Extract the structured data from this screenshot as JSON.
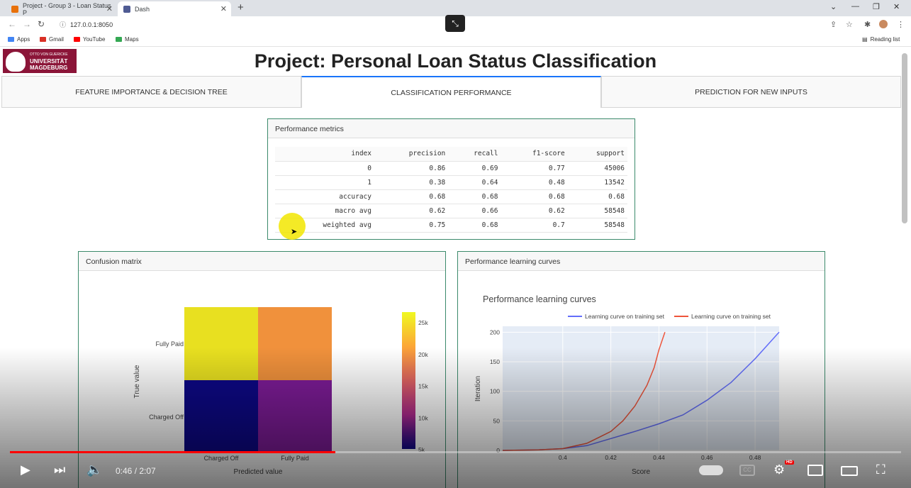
{
  "browser": {
    "tabs": [
      {
        "title": "Project - Group 3 - Loan Status P",
        "color": "#e8710a"
      },
      {
        "title": "Dash",
        "color": "#4f5b93"
      }
    ],
    "url": "127.0.0.1:8050",
    "bookmarks": [
      {
        "label": "Apps",
        "color": "#4285f4"
      },
      {
        "label": "Gmail",
        "color": "#d93025"
      },
      {
        "label": "YouTube",
        "color": "#ff0000"
      },
      {
        "label": "Maps",
        "color": "#34a853"
      }
    ],
    "reading_list": "Reading list"
  },
  "page": {
    "logo": {
      "line1": "OTTO VON GUERICKE",
      "line2": "UNIVERSITÄT",
      "line3": "MAGDEBURG"
    },
    "title": "Project: Personal Loan Status Classification",
    "tabs": [
      "FEATURE IMPORTANCE & DECISION TREE",
      "CLASSIFICATION PERFORMANCE",
      "PREDICTION FOR NEW INPUTS"
    ],
    "selected_tab": 1
  },
  "metrics": {
    "title": "Performance metrics",
    "columns": [
      "index",
      "precision",
      "recall",
      "f1-score",
      "support"
    ],
    "rows": [
      [
        "0",
        "0.86",
        "0.69",
        "0.77",
        "45006"
      ],
      [
        "1",
        "0.38",
        "0.64",
        "0.48",
        "13542"
      ],
      [
        "accuracy",
        "0.68",
        "0.68",
        "0.68",
        "0.68"
      ],
      [
        "macro avg",
        "0.62",
        "0.66",
        "0.62",
        "58548"
      ],
      [
        "weighted avg",
        "0.75",
        "0.68",
        "0.7",
        "58548"
      ]
    ]
  },
  "confusion": {
    "title": "Confusion matrix",
    "ylabel": "True value",
    "xlabel": "Predicted value",
    "y_categories": [
      "Fully Paid",
      "Charged Off"
    ],
    "x_categories": [
      "Charged Off",
      "Fully Paid"
    ],
    "cells": [
      {
        "row": "Fully Paid",
        "col": "Charged Off",
        "color": "#e8e020"
      },
      {
        "row": "Fully Paid",
        "col": "Fully Paid",
        "color": "#f0913c"
      },
      {
        "row": "Charged Off",
        "col": "Charged Off",
        "color": "#0d0887"
      },
      {
        "row": "Charged Off",
        "col": "Fully Paid",
        "color": "#7e1c98"
      }
    ],
    "colorbar_ticks": [
      "25k",
      "20k",
      "15k",
      "10k",
      "5k"
    ]
  },
  "chart_data": {
    "type": "line",
    "title": "Performance learning curves",
    "xlabel": "Score",
    "ylabel": "Iteration",
    "xlim": [
      0.375,
      0.49
    ],
    "ylim": [
      0,
      210
    ],
    "xticks": [
      "0.4",
      "0.42",
      "0.44",
      "0.46",
      "0.48"
    ],
    "yticks": [
      "0",
      "50",
      "100",
      "150",
      "200"
    ],
    "series": [
      {
        "name": "Learning curve on training set",
        "color": "#636efa",
        "x": [
          0.375,
          0.39,
          0.4,
          0.41,
          0.42,
          0.43,
          0.44,
          0.45,
          0.46,
          0.47,
          0.48,
          0.49
        ],
        "y": [
          0,
          1,
          3,
          8,
          20,
          32,
          45,
          60,
          85,
          115,
          155,
          200
        ]
      },
      {
        "name": "Learning curve on training set",
        "color": "#ef553b",
        "x": [
          0.375,
          0.39,
          0.4,
          0.41,
          0.415,
          0.42,
          0.425,
          0.43,
          0.435,
          0.438,
          0.44,
          0.4425
        ],
        "y": [
          0,
          1,
          3,
          12,
          22,
          32,
          50,
          75,
          110,
          140,
          170,
          200
        ]
      }
    ]
  },
  "learning_panel_title": "Performance learning curves",
  "player": {
    "time": "0:46 / 2:07",
    "progress": 0.365,
    "hd": "HD"
  }
}
